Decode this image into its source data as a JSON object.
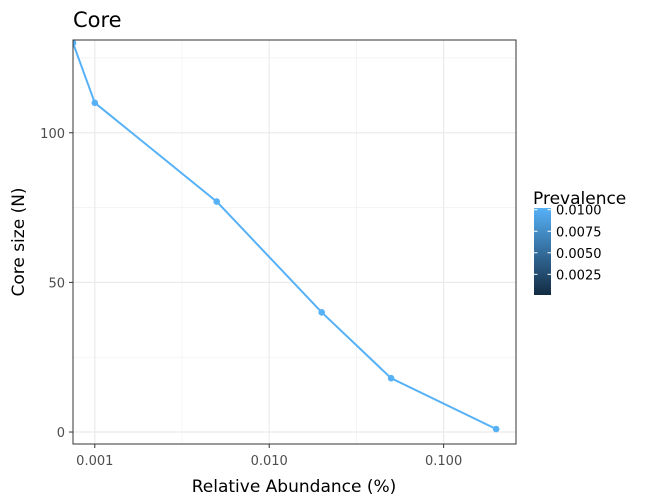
{
  "chart_data": {
    "type": "line",
    "title": "Core",
    "xlabel": "Relative Abundance (%)",
    "ylabel": "Core size (N)",
    "x_scale": "log10",
    "xlim": [
      0.00075,
      0.26
    ],
    "ylim": [
      -4,
      131
    ],
    "x_ticks": [
      {
        "value": 0.001,
        "label": "0.001"
      },
      {
        "value": 0.01,
        "label": "0.010"
      },
      {
        "value": 0.1,
        "label": "0.100"
      }
    ],
    "y_ticks": [
      {
        "value": 0,
        "label": "0"
      },
      {
        "value": 50,
        "label": "50"
      },
      {
        "value": 100,
        "label": "100"
      }
    ],
    "grid": true,
    "series": [
      {
        "prevalence": 0.01,
        "color": "#56B1F7",
        "points": [
          {
            "x": 0.00075,
            "y": 130
          },
          {
            "x": 0.001,
            "y": 110
          },
          {
            "x": 0.005,
            "y": 77
          },
          {
            "x": 0.02,
            "y": 40
          },
          {
            "x": 0.05,
            "y": 18
          },
          {
            "x": 0.2,
            "y": 1
          }
        ]
      }
    ],
    "legend": {
      "title": "Prevalence",
      "placement": "right",
      "range": [
        0.0001,
        0.0102
      ],
      "color_low": "#132B43",
      "color_high": "#56B1F7",
      "ticks": [
        {
          "value": 0.01,
          "label": "0.0100"
        },
        {
          "value": 0.0075,
          "label": "0.0075"
        },
        {
          "value": 0.005,
          "label": "0.0050"
        },
        {
          "value": 0.0025,
          "label": "0.0025"
        }
      ]
    }
  }
}
